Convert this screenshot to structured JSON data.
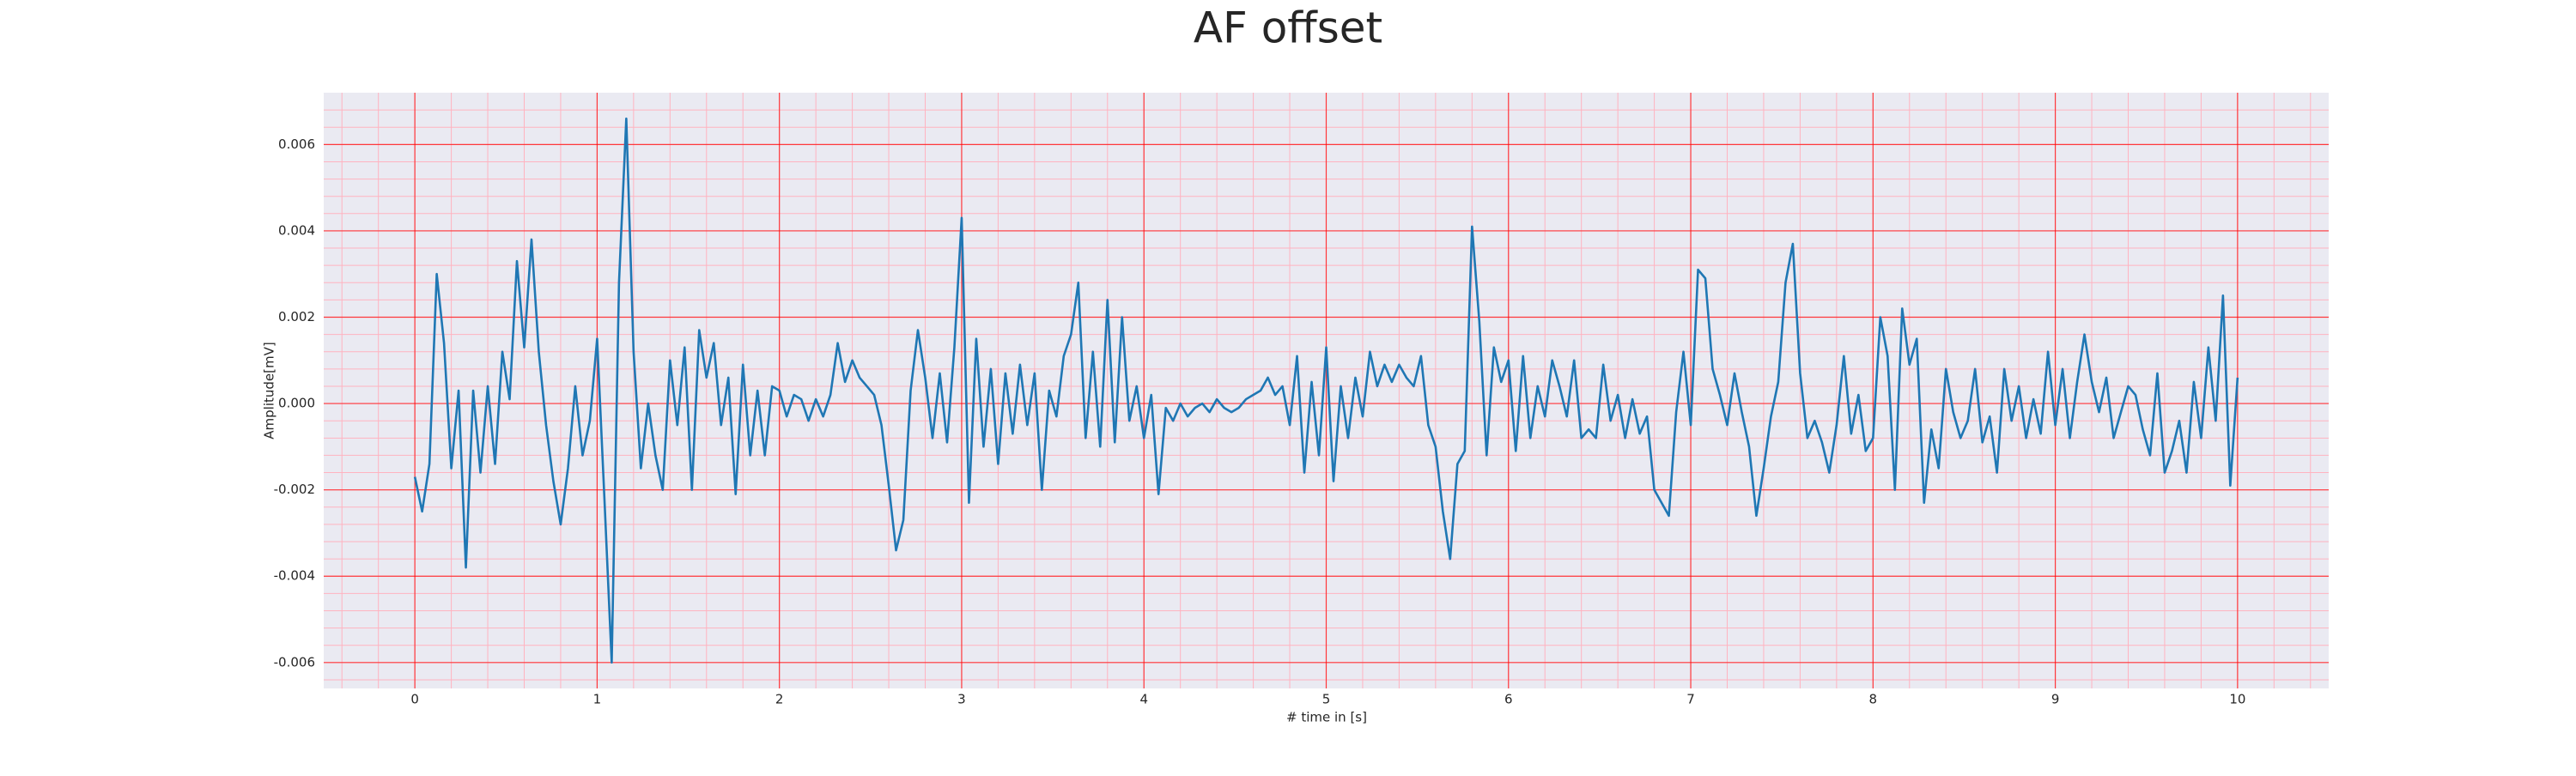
{
  "chart_data": {
    "type": "line",
    "title": "AF offset",
    "x_label": "# time in [s]",
    "y_label": "Amplitude[mV]",
    "xlim": [
      -0.5,
      10.5
    ],
    "ylim": [
      -0.0066,
      0.0072
    ],
    "xticks": [
      0,
      1,
      2,
      3,
      4,
      5,
      6,
      7,
      8,
      9,
      10
    ],
    "yticks": [
      {
        "value": -0.006,
        "label": "-0.006"
      },
      {
        "value": -0.004,
        "label": "-0.004"
      },
      {
        "value": -0.002,
        "label": "-0.002"
      },
      {
        "value": 0,
        "label": "0.000"
      },
      {
        "value": 0.002,
        "label": "0.002"
      },
      {
        "value": 0.004,
        "label": "0.004"
      },
      {
        "value": 0.006,
        "label": "0.006"
      }
    ],
    "grid": true,
    "grid_color": "#ff0000",
    "minor_grid": {
      "x_step": 0.2,
      "y_step": 0.0004,
      "color": "#ffb3c0"
    },
    "background": "#eaeaf2",
    "x": [
      0,
      0.04,
      0.08,
      0.12,
      0.16,
      0.2,
      0.24,
      0.28,
      0.32,
      0.36,
      0.4,
      0.44,
      0.48,
      0.52,
      0.56,
      0.6,
      0.64,
      0.68,
      0.72,
      0.76,
      0.8,
      0.84,
      0.88,
      0.92,
      0.96,
      1,
      1.04,
      1.08,
      1.12,
      1.16,
      1.2,
      1.24,
      1.28,
      1.32,
      1.36,
      1.4,
      1.44,
      1.48,
      1.52,
      1.56,
      1.6,
      1.64,
      1.68,
      1.72,
      1.76,
      1.8,
      1.84,
      1.88,
      1.92,
      1.96,
      2,
      2.04,
      2.08,
      2.12,
      2.16,
      2.2,
      2.24,
      2.28,
      2.32,
      2.36,
      2.4,
      2.44,
      2.48,
      2.52,
      2.56,
      2.6,
      2.64,
      2.68,
      2.72,
      2.76,
      2.8,
      2.84,
      2.88,
      2.92,
      2.96,
      3,
      3.04,
      3.08,
      3.12,
      3.16,
      3.2,
      3.24,
      3.28,
      3.32,
      3.36,
      3.4,
      3.44,
      3.48,
      3.52,
      3.56,
      3.6,
      3.64,
      3.68,
      3.72,
      3.76,
      3.8,
      3.84,
      3.88,
      3.92,
      3.96,
      4,
      4.04,
      4.08,
      4.12,
      4.16,
      4.2,
      4.24,
      4.28,
      4.32,
      4.36,
      4.4,
      4.44,
      4.48,
      4.52,
      4.56,
      4.6,
      4.64,
      4.68,
      4.72,
      4.76,
      4.8,
      4.84,
      4.88,
      4.92,
      4.96,
      5,
      5.04,
      5.08,
      5.12,
      5.16,
      5.2,
      5.24,
      5.28,
      5.32,
      5.36,
      5.4,
      5.44,
      5.48,
      5.52,
      5.56,
      5.6,
      5.64,
      5.68,
      5.72,
      5.76,
      5.8,
      5.84,
      5.88,
      5.92,
      5.96,
      6,
      6.04,
      6.08,
      6.12,
      6.16,
      6.2,
      6.24,
      6.28,
      6.32,
      6.36,
      6.4,
      6.44,
      6.48,
      6.52,
      6.56,
      6.6,
      6.64,
      6.68,
      6.72,
      6.76,
      6.8,
      6.84,
      6.88,
      6.92,
      6.96,
      7,
      7.04,
      7.08,
      7.12,
      7.16,
      7.2,
      7.24,
      7.28,
      7.32,
      7.36,
      7.4,
      7.44,
      7.48,
      7.52,
      7.56,
      7.6,
      7.64,
      7.68,
      7.72,
      7.76,
      7.8,
      7.84,
      7.88,
      7.92,
      7.96,
      8,
      8.04,
      8.08,
      8.12,
      8.16,
      8.2,
      8.24,
      8.28,
      8.32,
      8.36,
      8.4,
      8.44,
      8.48,
      8.52,
      8.56,
      8.6,
      8.64,
      8.68,
      8.72,
      8.76,
      8.8,
      8.84,
      8.88,
      8.92,
      8.96,
      9,
      9.04,
      9.08,
      9.12,
      9.16,
      9.2,
      9.24,
      9.28,
      9.32,
      9.36,
      9.4,
      9.44,
      9.48,
      9.52,
      9.56,
      9.6,
      9.64,
      9.68,
      9.72,
      9.76,
      9.8,
      9.84,
      9.88,
      9.92,
      9.96,
      10
    ],
    "series": [
      {
        "color": "#1f77b4",
        "values": [
          -0.0017,
          -0.0025,
          -0.0014,
          0.003,
          0.0014,
          -0.0015,
          0.0003,
          -0.0038,
          0.0003,
          -0.0016,
          0.0004,
          -0.0014,
          0.0012,
          0.0001,
          0.0033,
          0.0013,
          0.0038,
          0.0012,
          -0.0005,
          -0.0018,
          -0.0028,
          -0.0015,
          0.0004,
          -0.0012,
          -0.0004,
          0.0015,
          -0.0022,
          -0.006,
          0.0028,
          0.0066,
          0.0012,
          -0.0015,
          0,
          -0.0012,
          -0.002,
          0.001,
          -0.0005,
          0.0013,
          -0.002,
          0.0017,
          0.0006,
          0.0014,
          -0.0005,
          0.0006,
          -0.0021,
          0.0009,
          -0.0012,
          0.0003,
          -0.0012,
          0.0004,
          0.0003,
          -0.0003,
          0.0002,
          0.0001,
          -0.0004,
          0.0001,
          -0.0003,
          0.0002,
          0.0014,
          0.0005,
          0.001,
          0.0006,
          0.0004,
          0.0002,
          -0.0005,
          -0.0019,
          -0.0034,
          -0.0027,
          0.0003,
          0.0017,
          0.0006,
          -0.0008,
          0.0007,
          -0.0009,
          0.0013,
          0.0043,
          -0.0023,
          0.0015,
          -0.001,
          0.0008,
          -0.0014,
          0.0007,
          -0.0007,
          0.0009,
          -0.0005,
          0.0007,
          -0.002,
          0.0003,
          -0.0003,
          0.0011,
          0.0016,
          0.0028,
          -0.0008,
          0.0012,
          -0.001,
          0.0024,
          -0.0009,
          0.002,
          -0.0004,
          0.0004,
          -0.0008,
          0.0002,
          -0.0021,
          -0.0001,
          -0.0004,
          0,
          -0.0003,
          -0.0001,
          0,
          -0.0002,
          0.0001,
          -0.0001,
          -0.0002,
          -0.0001,
          0.0001,
          0.0002,
          0.0003,
          0.0006,
          0.0002,
          0.0004,
          -0.0005,
          0.0011,
          -0.0016,
          0.0005,
          -0.0012,
          0.0013,
          -0.0018,
          0.0004,
          -0.0008,
          0.0006,
          -0.0003,
          0.0012,
          0.0004,
          0.0009,
          0.0005,
          0.0009,
          0.0006,
          0.0004,
          0.0011,
          -0.0005,
          -0.001,
          -0.0025,
          -0.0036,
          -0.0014,
          -0.0011,
          0.0041,
          0.0019,
          -0.0012,
          0.0013,
          0.0005,
          0.001,
          -0.0011,
          0.0011,
          -0.0008,
          0.0004,
          -0.0003,
          0.001,
          0.0004,
          -0.0003,
          0.001,
          -0.0008,
          -0.0006,
          -0.0008,
          0.0009,
          -0.0004,
          0.0002,
          -0.0008,
          0.0001,
          -0.0007,
          -0.0003,
          -0.002,
          -0.0023,
          -0.0026,
          -0.0002,
          0.0012,
          -0.0005,
          0.0031,
          0.0029,
          0.0008,
          0.0002,
          -0.0005,
          0.0007,
          -0.0002,
          -0.001,
          -0.0026,
          -0.0015,
          -0.0003,
          0.0005,
          0.0028,
          0.0037,
          0.0007,
          -0.0008,
          -0.0004,
          -0.0009,
          -0.0016,
          -0.0005,
          0.0011,
          -0.0007,
          0.0002,
          -0.0011,
          -0.0008,
          0.002,
          0.0011,
          -0.002,
          0.0022,
          0.0009,
          0.0015,
          -0.0023,
          -0.0006,
          -0.0015,
          0.0008,
          -0.0002,
          -0.0008,
          -0.0004,
          0.0008,
          -0.0009,
          -0.0003,
          -0.0016,
          0.0008,
          -0.0004,
          0.0004,
          -0.0008,
          0.0001,
          -0.0007,
          0.0012,
          -0.0005,
          0.0008,
          -0.0008,
          0.0005,
          0.0016,
          0.0005,
          -0.0002,
          0.0006,
          -0.0008,
          -0.0002,
          0.0004,
          0.0002,
          -0.0006,
          -0.0012,
          0.0007,
          -0.0016,
          -0.0011,
          -0.0004,
          -0.0016,
          0.0005,
          -0.0008,
          0.0013,
          -0.0004,
          0.0025,
          -0.0019,
          0.0006
        ]
      }
    ]
  }
}
